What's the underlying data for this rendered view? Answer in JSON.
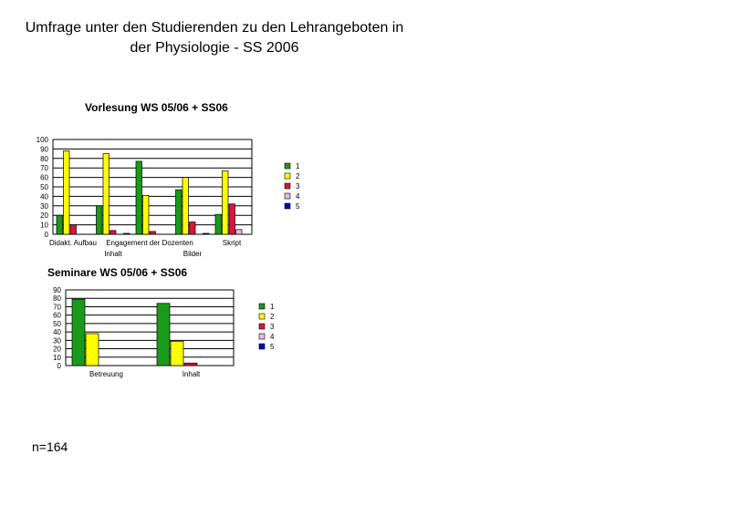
{
  "title": {
    "line1": "Umfrage unter den Studierenden zu den Lehrangeboten in",
    "line2": "der Physiologie - SS 2006"
  },
  "footnote": "n=164",
  "colors": {
    "series": [
      "#1a9a1a",
      "#ffff00",
      "#dc143c",
      "#e8b8e8",
      "#0000cc"
    ],
    "grid": "#000000",
    "axis": "#000000"
  },
  "chart_data": [
    {
      "type": "bar",
      "title": "Vorlesung WS 05/06 + SS06",
      "categories": [
        "Didakt. Aufbau",
        "Engagement der Dozenten",
        "Inhalt",
        "Bilder",
        "Skript"
      ],
      "category_label_lines": [
        [
          "Didakt. Aufbau"
        ],
        [
          "Engagement der Dozenten",
          "Inhalt"
        ],
        [
          "",
          "Bilder"
        ],
        [
          ""
        ],
        [
          "Skript"
        ]
      ],
      "series": [
        {
          "name": "1",
          "values": [
            20,
            30,
            77,
            47,
            21
          ]
        },
        {
          "name": "2",
          "values": [
            88,
            85,
            41,
            60,
            67
          ]
        },
        {
          "name": "3",
          "values": [
            10,
            4,
            3,
            13,
            32
          ]
        },
        {
          "name": "4",
          "values": [
            0,
            0,
            0,
            0,
            5
          ]
        },
        {
          "name": "5",
          "values": [
            0,
            1,
            0,
            1,
            0
          ]
        }
      ],
      "ylim": [
        0,
        100
      ],
      "yticks": [
        0,
        10,
        20,
        30,
        40,
        50,
        60,
        70,
        80,
        90,
        100
      ],
      "grid": true,
      "legend": "right"
    },
    {
      "type": "bar",
      "title": "Seminare WS 05/06 + SS06",
      "categories": [
        "Betreuung",
        "Inhalt"
      ],
      "series": [
        {
          "name": "1",
          "values": [
            79,
            74
          ]
        },
        {
          "name": "2",
          "values": [
            38,
            29
          ]
        },
        {
          "name": "3",
          "values": [
            0,
            3
          ]
        },
        {
          "name": "4",
          "values": [
            0,
            0
          ]
        },
        {
          "name": "5",
          "values": [
            0,
            0
          ]
        }
      ],
      "ylim": [
        0,
        90
      ],
      "yticks": [
        0,
        10,
        20,
        30,
        40,
        50,
        60,
        70,
        80,
        90
      ],
      "grid": true,
      "legend": "right"
    }
  ]
}
